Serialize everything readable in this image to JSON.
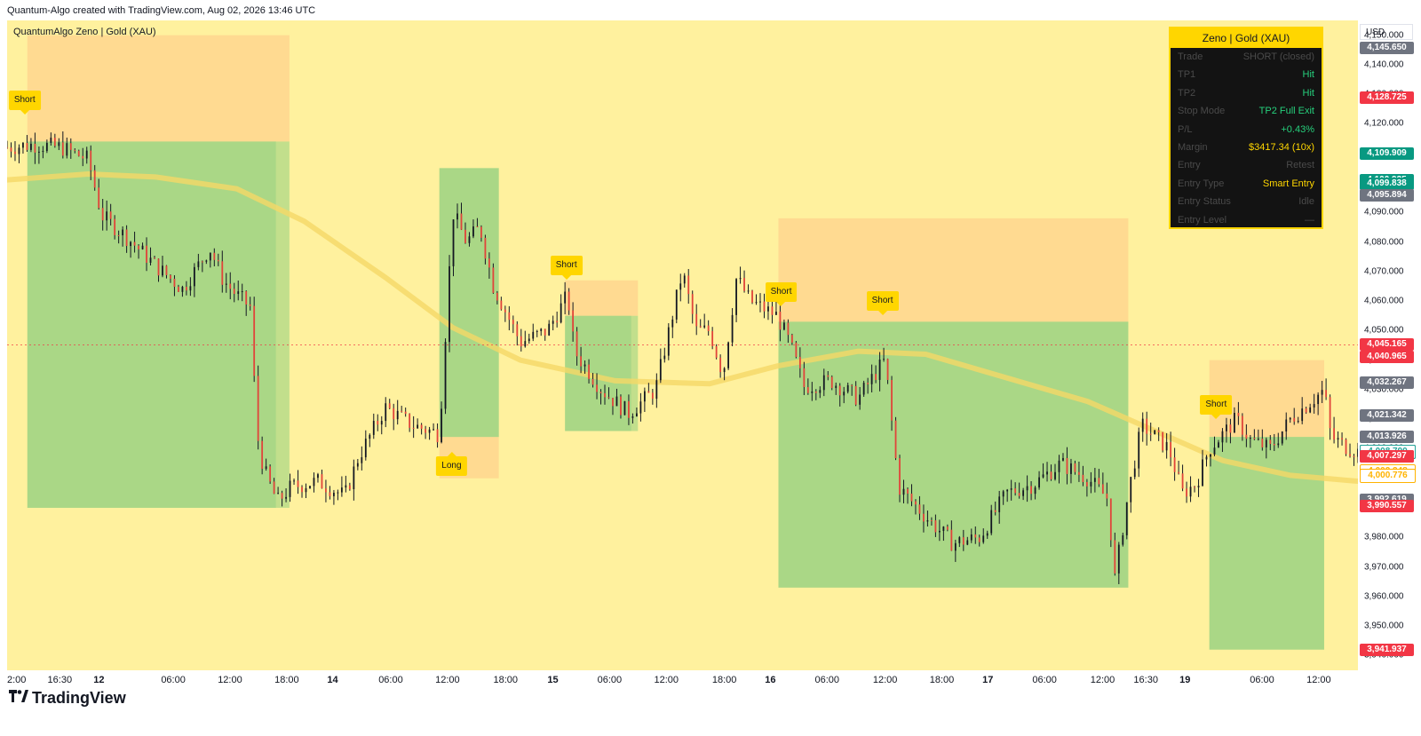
{
  "header": {
    "credit": "Quantum-Algo created with TradingView.com, Aug 02, 2026 13:46 UTC"
  },
  "chart_title": "QuantumAlgo Zeno | Gold (XAU)",
  "currency_button": "USD",
  "brand": {
    "name": "TradingView",
    "icon": "tradingview-logo-icon"
  },
  "colors": {
    "background": "#fff19e",
    "profit_zone": "#8fcf7e",
    "loss_zone": "#ffd18c",
    "marker": "#ffd600",
    "ema": "#f5d866",
    "panel_bg": "#131313",
    "positive": "#26a69a",
    "negative": "#f23645"
  },
  "panel": {
    "title": "Zeno | Gold (XAU)",
    "rows": [
      {
        "key": "Trade",
        "value": "SHORT (closed)",
        "color": "#4a4a4a"
      },
      {
        "key": "TP1",
        "value": "Hit",
        "color": "#26d07c"
      },
      {
        "key": "TP2",
        "value": "Hit",
        "color": "#26d07c"
      },
      {
        "key": "Stop Mode",
        "value": "TP2 Full Exit",
        "color": "#26d07c"
      },
      {
        "key": "P/L",
        "value": "+0.43%",
        "color": "#26d07c"
      },
      {
        "key": "Margin",
        "value": "$3417.34 (10x)",
        "color": "#ffd600"
      },
      {
        "key": "Entry",
        "value": "Retest",
        "color": "#4a4a4a"
      },
      {
        "key": "Entry Type",
        "value": "Smart Entry",
        "color": "#ffd600"
      },
      {
        "key": "Entry Status",
        "value": "Idle",
        "color": "#4a4a4a"
      },
      {
        "key": "Entry Level",
        "value": "—",
        "color": "#4a4a4a"
      }
    ]
  },
  "chart_data": {
    "type": "candlestick",
    "symbol": "Gold (XAU)",
    "y_range": [
      3935,
      4155
    ],
    "price_ticks": [
      "4,150.000",
      "4,140.000",
      "4,130.000",
      "4,120.000",
      "4,110.000",
      "4,100.000",
      "4,090.000",
      "4,080.000",
      "4,070.000",
      "4,060.000",
      "4,050.000",
      "4,040.000",
      "4,030.000",
      "4,020.000",
      "4,010.000",
      "4,000.000",
      "3,990.000",
      "3,980.000",
      "3,970.000",
      "3,960.000",
      "3,950.000",
      "3,940.000"
    ],
    "price_tick_values": [
      4150,
      4140,
      4130,
      4120,
      4110,
      4100,
      4090,
      4080,
      4070,
      4060,
      4050,
      4040,
      4030,
      4020,
      4010,
      4000,
      3990,
      3980,
      3970,
      3960,
      3950,
      3940
    ],
    "price_labels": [
      {
        "text": "4,145.650",
        "value": 4145.65,
        "bg": "#6f7480",
        "fg": "#ffffff"
      },
      {
        "text": "4,128.725",
        "value": 4128.725,
        "bg": "#f23645",
        "fg": "#ffffff"
      },
      {
        "text": "4,109.909",
        "value": 4109.909,
        "bg": "#089981",
        "fg": "#ffffff"
      },
      {
        "text": "4,100.935",
        "value": 4100.935,
        "bg": "#089981",
        "fg": "#ffffff"
      },
      {
        "text": "4,099.838",
        "value": 4099.838,
        "bg": "#089981",
        "fg": "#ffffff"
      },
      {
        "text": "4,095.894",
        "value": 4095.894,
        "bg": "#6f7480",
        "fg": "#ffffff"
      },
      {
        "text": "4,045.165",
        "value": 4045.165,
        "bg": "#f23645",
        "fg": "#ffffff"
      },
      {
        "text": "4,040.965",
        "value": 4040.965,
        "bg": "#f23645",
        "fg": "#ffffff"
      },
      {
        "text": "4,032.267",
        "value": 4032.267,
        "bg": "#6f7480",
        "fg": "#ffffff"
      },
      {
        "text": "4,021.342",
        "value": 4021.342,
        "bg": "#6f7480",
        "fg": "#ffffff"
      },
      {
        "text": "4,013.926",
        "value": 4013.926,
        "bg": "#6f7480",
        "fg": "#ffffff"
      },
      {
        "text": "4,008.790",
        "value": 4008.79,
        "bg": "#ffffff",
        "fg": "#131722"
      },
      {
        "text": "4,008.790",
        "value": 4008.79,
        "bg": "#ffffff",
        "fg": "#26a69a"
      },
      {
        "text": "4,007.379",
        "value": 4007.379,
        "bg": "#f23645",
        "fg": "#ffffff"
      },
      {
        "text": "4,007.297",
        "value": 4007.297,
        "bg": "#f23645",
        "fg": "#ffffff"
      },
      {
        "text": "4,002.248",
        "value": 4002.248,
        "bg": "#ffffff",
        "fg": "#ffb300"
      },
      {
        "text": "4,000.776",
        "value": 4000.776,
        "bg": "#ffffff",
        "fg": "#ffb300"
      },
      {
        "text": "3,992.619",
        "value": 3992.619,
        "bg": "#6f7480",
        "fg": "#ffffff"
      },
      {
        "text": "3,990.557",
        "value": 3990.557,
        "bg": "#f23645",
        "fg": "#ffffff"
      },
      {
        "text": "3,941.937",
        "value": 3941.937,
        "bg": "#f23645",
        "fg": "#ffffff"
      }
    ],
    "time_labels": [
      "2:00",
      "16:30",
      "12",
      "06:00",
      "12:00",
      "18:00",
      "14",
      "06:00",
      "12:00",
      "18:00",
      "15",
      "06:00",
      "12:00",
      "18:00",
      "16",
      "06:00",
      "12:00",
      "18:00",
      "17",
      "06:00",
      "12:00",
      "16:30",
      "19",
      "06:00",
      "12:00"
    ],
    "time_label_bold": [
      false,
      false,
      true,
      false,
      false,
      false,
      true,
      false,
      false,
      false,
      true,
      false,
      false,
      false,
      true,
      false,
      false,
      false,
      true,
      false,
      false,
      false,
      true,
      false,
      false
    ],
    "x_range": [
      0,
      1
    ],
    "time_label_x": [
      0.0,
      0.039,
      0.068,
      0.123,
      0.165,
      0.207,
      0.241,
      0.284,
      0.326,
      0.369,
      0.404,
      0.446,
      0.488,
      0.531,
      0.565,
      0.607,
      0.65,
      0.692,
      0.726,
      0.768,
      0.811,
      0.843,
      0.872,
      0.929,
      0.971
    ],
    "current_price": 4045.165,
    "trades": [
      {
        "side": "Short",
        "entry": 4114,
        "stop": 4150,
        "tp": 3990,
        "x0": 0.015,
        "x1": 0.209,
        "xtp": 0.199
      },
      {
        "side": "Long",
        "entry": 4014,
        "stop": 4000,
        "tp": 4105,
        "x0": 0.32,
        "x1": 0.364,
        "xtp": 0.364
      },
      {
        "side": "Short",
        "entry": 4055,
        "stop": 4067,
        "tp": 4016,
        "x0": 0.413,
        "x1": 0.467,
        "xtp": 0.462
      },
      {
        "side": "Short",
        "entry": 4053,
        "stop": 4088,
        "tp": 3963,
        "x0": 0.571,
        "x1": 0.83,
        "xtp": 0.83
      },
      {
        "side": "Short",
        "entry": 4014,
        "stop": 4040,
        "tp": 3942,
        "x0": 0.89,
        "x1": 0.975,
        "xtp": 0.975
      }
    ],
    "signals": [
      {
        "label": "Short",
        "dir": "down",
        "x": 0.013,
        "price": 4128
      },
      {
        "label": "Long",
        "dir": "up",
        "x": 0.329,
        "price": 4004
      },
      {
        "label": "Short",
        "dir": "down",
        "x": 0.414,
        "price": 4072
      },
      {
        "label": "Short",
        "dir": "down",
        "x": 0.573,
        "price": 4063
      },
      {
        "label": "Short",
        "dir": "down",
        "x": 0.648,
        "price": 4060
      },
      {
        "label": "Short",
        "dir": "down",
        "x": 0.895,
        "price": 4025
      }
    ],
    "ema": [
      [
        0,
        4101
      ],
      [
        0.06,
        4103
      ],
      [
        0.11,
        4102
      ],
      [
        0.17,
        4098
      ],
      [
        0.22,
        4087
      ],
      [
        0.28,
        4068
      ],
      [
        0.33,
        4051
      ],
      [
        0.38,
        4040
      ],
      [
        0.45,
        4033
      ],
      [
        0.52,
        4032
      ],
      [
        0.57,
        4038
      ],
      [
        0.63,
        4043
      ],
      [
        0.68,
        4042
      ],
      [
        0.74,
        4034
      ],
      [
        0.8,
        4026
      ],
      [
        0.85,
        4016
      ],
      [
        0.9,
        4006
      ],
      [
        0.95,
        4001
      ],
      [
        1.0,
        3999
      ]
    ],
    "price_path": [
      [
        0,
        4112
      ],
      [
        0.02,
        4113
      ],
      [
        0.04,
        4112
      ],
      [
        0.06,
        4108
      ],
      [
        0.07,
        4089
      ],
      [
        0.09,
        4081
      ],
      [
        0.11,
        4072
      ],
      [
        0.13,
        4064
      ],
      [
        0.15,
        4078
      ],
      [
        0.16,
        4067
      ],
      [
        0.17,
        4062
      ],
      [
        0.18,
        4058
      ],
      [
        0.185,
        4015
      ],
      [
        0.19,
        4003
      ],
      [
        0.2,
        3992
      ],
      [
        0.21,
        3997
      ],
      [
        0.23,
        3999
      ],
      [
        0.25,
        3994
      ],
      [
        0.26,
        4007
      ],
      [
        0.28,
        4024
      ],
      [
        0.3,
        4018
      ],
      [
        0.32,
        4015
      ],
      [
        0.33,
        4090
      ],
      [
        0.34,
        4080
      ],
      [
        0.35,
        4085
      ],
      [
        0.36,
        4065
      ],
      [
        0.38,
        4046
      ],
      [
        0.4,
        4050
      ],
      [
        0.415,
        4062
      ],
      [
        0.42,
        4043
      ],
      [
        0.44,
        4030
      ],
      [
        0.46,
        4022
      ],
      [
        0.48,
        4030
      ],
      [
        0.5,
        4070
      ],
      [
        0.51,
        4050
      ],
      [
        0.52,
        4050
      ],
      [
        0.53,
        4035
      ],
      [
        0.54,
        4068
      ],
      [
        0.55,
        4060
      ],
      [
        0.57,
        4055
      ],
      [
        0.58,
        4045
      ],
      [
        0.59,
        4031
      ],
      [
        0.61,
        4033
      ],
      [
        0.63,
        4027
      ],
      [
        0.645,
        4037
      ],
      [
        0.65,
        4040
      ],
      [
        0.66,
        3997
      ],
      [
        0.68,
        3987
      ],
      [
        0.7,
        3978
      ],
      [
        0.72,
        3980
      ],
      [
        0.74,
        3995
      ],
      [
        0.76,
        3998
      ],
      [
        0.78,
        4005
      ],
      [
        0.8,
        4000
      ],
      [
        0.815,
        3993
      ],
      [
        0.82,
        3966
      ],
      [
        0.83,
        3995
      ],
      [
        0.84,
        4018
      ],
      [
        0.85,
        4014
      ],
      [
        0.86,
        4010
      ],
      [
        0.87,
        3995
      ],
      [
        0.88,
        3998
      ],
      [
        0.89,
        4010
      ],
      [
        0.91,
        4020
      ],
      [
        0.92,
        4013
      ],
      [
        0.935,
        4010
      ],
      [
        0.95,
        4020
      ],
      [
        0.965,
        4026
      ],
      [
        0.975,
        4030
      ],
      [
        0.98,
        4014
      ],
      [
        0.99,
        4011
      ],
      [
        1.0,
        4009
      ]
    ]
  }
}
